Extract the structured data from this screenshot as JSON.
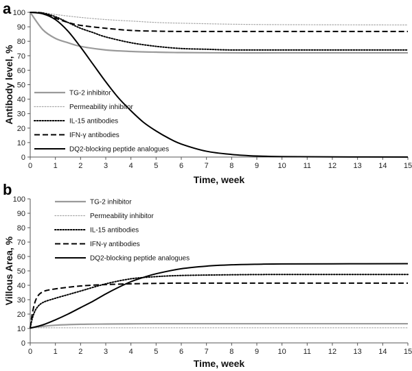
{
  "chart_data": [
    {
      "type": "line",
      "panel_label": "a",
      "title": "",
      "xlabel": "Time, week",
      "ylabel": "Antibody level, %",
      "xlim": [
        0,
        15
      ],
      "ylim": [
        0,
        100
      ],
      "xticks": [
        "0",
        "1",
        "2",
        "3",
        "4",
        "5",
        "6",
        "7",
        "8",
        "9",
        "10",
        "11",
        "12",
        "13",
        "14",
        "15"
      ],
      "yticks": [
        "0",
        "10",
        "20",
        "30",
        "40",
        "50",
        "60",
        "70",
        "80",
        "90",
        "100"
      ],
      "grid": false,
      "legend_position": "left",
      "series": [
        {
          "name": "TG-2 inhibitor",
          "color": "#9a9a9a",
          "style": "solid",
          "x": [
            0,
            0.5,
            1,
            1.5,
            2,
            3,
            4,
            5,
            6,
            8,
            10,
            15
          ],
          "y": [
            100,
            88,
            82,
            79,
            76.5,
            74,
            73,
            72.5,
            72.2,
            72,
            72,
            72
          ]
        },
        {
          "name": "Permeability inhibitor",
          "color": "#a6a6a6",
          "style": "dotted",
          "x": [
            0,
            0.5,
            1,
            2,
            3,
            4,
            5,
            6,
            8,
            10,
            15
          ],
          "y": [
            100,
            99.8,
            98.5,
            96.5,
            95,
            94,
            93,
            92.5,
            91.8,
            91.5,
            91.3
          ]
        },
        {
          "name": "IL-15 antibodies",
          "color": "#000000",
          "style": "dotted",
          "x": [
            0,
            0.5,
            1,
            1.5,
            2,
            2.5,
            3,
            4,
            5,
            6,
            7,
            8,
            10,
            15
          ],
          "y": [
            100,
            99.5,
            97,
            93,
            89,
            86,
            83,
            79,
            76.5,
            75,
            74.5,
            74,
            74,
            74
          ]
        },
        {
          "name": "IFN-γ antibodies",
          "color": "#000000",
          "style": "dashed",
          "x": [
            0,
            0.5,
            1,
            1.5,
            2,
            3,
            4,
            5,
            6,
            8,
            15
          ],
          "y": [
            100,
            99.5,
            96,
            93,
            91,
            89,
            87.5,
            87,
            86.8,
            86.8,
            86.8
          ]
        },
        {
          "name": "DQ2-blocking peptide analogues",
          "color": "#000000",
          "style": "solid",
          "x": [
            0,
            0.5,
            1,
            1.5,
            2,
            2.5,
            3,
            3.5,
            4,
            4.5,
            5,
            5.5,
            6,
            7,
            8,
            9,
            10,
            12,
            15
          ],
          "y": [
            100,
            99,
            95,
            87,
            76,
            64,
            52,
            41,
            32,
            24,
            18,
            13,
            9,
            4,
            1.8,
            0.7,
            0.3,
            0.1,
            0
          ]
        }
      ]
    },
    {
      "type": "line",
      "panel_label": "b",
      "title": "",
      "xlabel": "Time, week",
      "ylabel": "Villous Area, %",
      "xlim": [
        0,
        15
      ],
      "ylim": [
        0,
        100
      ],
      "xticks": [
        "0",
        "1",
        "2",
        "3",
        "4",
        "5",
        "6",
        "7",
        "8",
        "9",
        "10",
        "11",
        "12",
        "13",
        "14",
        "15"
      ],
      "yticks": [
        "0",
        "10",
        "20",
        "30",
        "40",
        "50",
        "60",
        "70",
        "80",
        "90",
        "100"
      ],
      "grid": false,
      "legend_position": "top-left",
      "series": [
        {
          "name": "TG-2 inhibitor",
          "color": "#9a9a9a",
          "style": "solid",
          "x": [
            0,
            0.5,
            1,
            2,
            3,
            4,
            5,
            7,
            10,
            15
          ],
          "y": [
            10.5,
            11.5,
            12.3,
            12.9,
            13.1,
            13.2,
            13.3,
            13.3,
            13.3,
            13.3
          ]
        },
        {
          "name": "Permeability inhibitor",
          "color": "#a6a6a6",
          "style": "dotted",
          "x": [
            0,
            15
          ],
          "y": [
            10.5,
            10.5
          ]
        },
        {
          "name": "IL-15 antibodies",
          "color": "#000000",
          "style": "dotted",
          "x": [
            0,
            0.1,
            0.25,
            0.5,
            1,
            1.5,
            2,
            3,
            4,
            5,
            6,
            8,
            10,
            15
          ],
          "y": [
            10.5,
            18,
            24,
            28,
            31,
            33.5,
            36,
            41,
            44.5,
            46,
            46.8,
            47.3,
            47.5,
            47.5
          ]
        },
        {
          "name": "IFN-γ antibodies",
          "color": "#000000",
          "style": "dashed",
          "x": [
            0,
            0.1,
            0.25,
            0.5,
            1,
            2,
            3,
            4,
            5,
            6,
            8,
            10,
            15
          ],
          "y": [
            10.5,
            22,
            31,
            35.5,
            37.5,
            39.5,
            40.5,
            41,
            41.3,
            41.5,
            41.5,
            41.5,
            41.5
          ]
        },
        {
          "name": "DQ2-blocking peptide analogues",
          "color": "#000000",
          "style": "solid",
          "x": [
            0,
            0.5,
            1,
            1.5,
            2,
            2.5,
            3,
            3.5,
            4,
            4.5,
            5,
            6,
            7,
            8,
            9,
            10,
            12,
            15
          ],
          "y": [
            10.2,
            12.5,
            16,
            20,
            24.5,
            29,
            34,
            38.5,
            42.5,
            45.5,
            48,
            51.5,
            53.3,
            54.2,
            54.6,
            54.8,
            54.9,
            55
          ]
        }
      ]
    }
  ]
}
